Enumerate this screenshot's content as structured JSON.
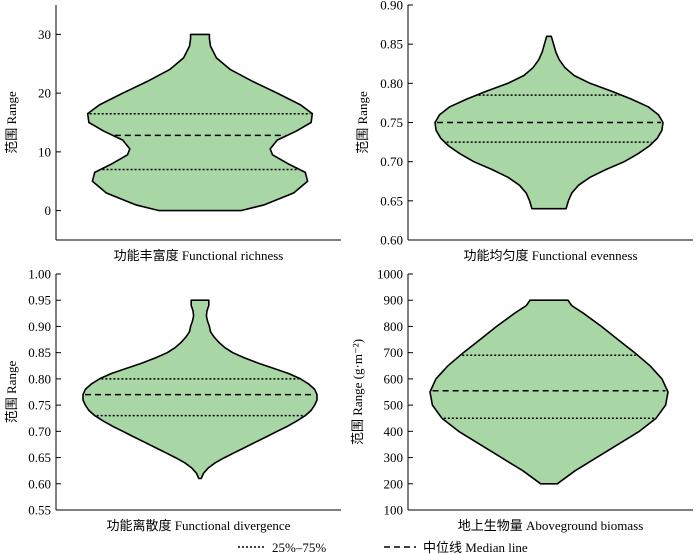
{
  "chart_data": [
    {
      "type": "violin",
      "xlabel": "功能丰富度 Functional richness",
      "ylabel": "范围 Range",
      "ylim": [
        -5,
        35
      ],
      "yticks": [
        0,
        10,
        20,
        30
      ],
      "ytick_labels": [
        "0",
        "10",
        "20",
        "30"
      ],
      "min": 0,
      "max": 30,
      "q1": 7,
      "median": 12.8,
      "q3": 16.5,
      "profile": [
        [
          0,
          0.35
        ],
        [
          1,
          0.55
        ],
        [
          3,
          0.8
        ],
        [
          5,
          0.92
        ],
        [
          6.5,
          0.9
        ],
        [
          8,
          0.75
        ],
        [
          9.5,
          0.62
        ],
        [
          10.5,
          0.6
        ],
        [
          12,
          0.66
        ],
        [
          13.5,
          0.82
        ],
        [
          15,
          0.95
        ],
        [
          16.5,
          0.96
        ],
        [
          18,
          0.86
        ],
        [
          20,
          0.66
        ],
        [
          22,
          0.45
        ],
        [
          24,
          0.26
        ],
        [
          26,
          0.14
        ],
        [
          28,
          0.09
        ],
        [
          29.3,
          0.08
        ],
        [
          30,
          0.08
        ]
      ]
    },
    {
      "type": "violin",
      "xlabel": "功能均匀度 Functional evenness",
      "ylabel": "范围 Range",
      "ylim": [
        0.6,
        0.9
      ],
      "yticks": [
        0.6,
        0.65,
        0.7,
        0.75,
        0.8,
        0.85,
        0.9
      ],
      "ytick_labels": [
        "0.60",
        "0.65",
        "0.70",
        "0.75",
        "0.80",
        "0.85",
        "0.90"
      ],
      "min": 0.64,
      "max": 0.86,
      "q1": 0.725,
      "median": 0.75,
      "q3": 0.785,
      "profile": [
        [
          0.64,
          0.15
        ],
        [
          0.65,
          0.17
        ],
        [
          0.66,
          0.2
        ],
        [
          0.67,
          0.26
        ],
        [
          0.68,
          0.36
        ],
        [
          0.69,
          0.5
        ],
        [
          0.7,
          0.66
        ],
        [
          0.71,
          0.78
        ],
        [
          0.72,
          0.88
        ],
        [
          0.73,
          0.95
        ],
        [
          0.74,
          0.99
        ],
        [
          0.75,
          1.0
        ],
        [
          0.76,
          0.96
        ],
        [
          0.77,
          0.87
        ],
        [
          0.78,
          0.72
        ],
        [
          0.79,
          0.55
        ],
        [
          0.8,
          0.36
        ],
        [
          0.81,
          0.22
        ],
        [
          0.82,
          0.14
        ],
        [
          0.83,
          0.09
        ],
        [
          0.84,
          0.06
        ],
        [
          0.85,
          0.04
        ],
        [
          0.86,
          0.02
        ]
      ]
    },
    {
      "type": "violin",
      "xlabel": "功能离散度 Functional divergence",
      "ylabel": "范围 Range",
      "ylim": [
        0.55,
        1.0
      ],
      "yticks": [
        0.55,
        0.6,
        0.65,
        0.7,
        0.75,
        0.8,
        0.85,
        0.9,
        0.95,
        1.0
      ],
      "ytick_labels": [
        "0.55",
        "0.60",
        "0.65",
        "0.70",
        "0.75",
        "0.80",
        "0.85",
        "0.90",
        "0.95",
        "1.00"
      ],
      "min": 0.61,
      "max": 0.95,
      "q1": 0.73,
      "median": 0.77,
      "q3": 0.8,
      "profile": [
        [
          0.61,
          0.01
        ],
        [
          0.62,
          0.03
        ],
        [
          0.63,
          0.07
        ],
        [
          0.64,
          0.13
        ],
        [
          0.65,
          0.21
        ],
        [
          0.66,
          0.3
        ],
        [
          0.67,
          0.39
        ],
        [
          0.68,
          0.48
        ],
        [
          0.69,
          0.57
        ],
        [
          0.7,
          0.66
        ],
        [
          0.71,
          0.75
        ],
        [
          0.72,
          0.83
        ],
        [
          0.73,
          0.9
        ],
        [
          0.74,
          0.95
        ],
        [
          0.75,
          0.98
        ],
        [
          0.76,
          1.0
        ],
        [
          0.77,
          1.0
        ],
        [
          0.78,
          0.98
        ],
        [
          0.79,
          0.93
        ],
        [
          0.8,
          0.86
        ],
        [
          0.81,
          0.76
        ],
        [
          0.82,
          0.63
        ],
        [
          0.83,
          0.5
        ],
        [
          0.84,
          0.38
        ],
        [
          0.85,
          0.28
        ],
        [
          0.86,
          0.21
        ],
        [
          0.87,
          0.16
        ],
        [
          0.88,
          0.12
        ],
        [
          0.89,
          0.09
        ],
        [
          0.9,
          0.08
        ],
        [
          0.91,
          0.065
        ],
        [
          0.92,
          0.055
        ],
        [
          0.93,
          0.06
        ],
        [
          0.94,
          0.075
        ],
        [
          0.95,
          0.075
        ]
      ]
    },
    {
      "type": "violin",
      "xlabel": "地上生物量 Aboveground biomass",
      "ylabel": "范围 Range (g·m⁻²)",
      "ylim": [
        100,
        1000
      ],
      "yticks": [
        100,
        200,
        300,
        400,
        500,
        600,
        700,
        800,
        900,
        1000
      ],
      "ytick_labels": [
        "100",
        "200",
        "300",
        "400",
        "500",
        "600",
        "700",
        "800",
        "900",
        "1000"
      ],
      "min": 200,
      "max": 900,
      "q1": 450,
      "median": 555,
      "q3": 690,
      "profile": [
        [
          200,
          0.07
        ],
        [
          250,
          0.22
        ],
        [
          300,
          0.4
        ],
        [
          350,
          0.58
        ],
        [
          400,
          0.76
        ],
        [
          450,
          0.9
        ],
        [
          500,
          0.98
        ],
        [
          550,
          1.0
        ],
        [
          600,
          0.95
        ],
        [
          650,
          0.85
        ],
        [
          700,
          0.72
        ],
        [
          750,
          0.58
        ],
        [
          800,
          0.44
        ],
        [
          850,
          0.29
        ],
        [
          880,
          0.19
        ],
        [
          900,
          0.16
        ]
      ]
    }
  ],
  "legend": {
    "quartile_label": "25%–75%",
    "median_label": "中位线 Median line"
  }
}
